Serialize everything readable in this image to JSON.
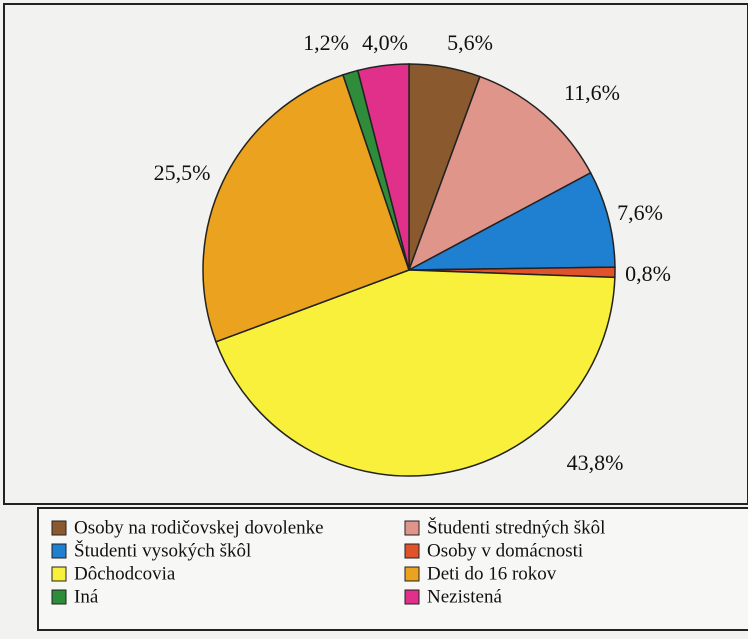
{
  "chart_data": {
    "type": "pie",
    "categories": [
      "Osoby na rodičovskej dovolenke",
      "Študenti stredných škôl",
      "Študenti vysokých škôl",
      "Osoby v domácnosti",
      "Dôchodcovia",
      "Deti do 16 rokov",
      "Iná",
      "Nezistená"
    ],
    "values": [
      5.6,
      11.6,
      7.6,
      0.8,
      43.8,
      25.5,
      1.2,
      4.0
    ],
    "value_labels": [
      "5,6%",
      "11,6%",
      "7,6%",
      "0,8%",
      "43,8%",
      "25,5%",
      "1,2%",
      "4,0%"
    ],
    "colors": [
      "#8a5a2e",
      "#e0958a",
      "#1f7fd0",
      "#e0522a",
      "#f8f03a",
      "#eba21e",
      "#2e8c3a",
      "#e0308a"
    ],
    "legend": "bottom"
  }
}
